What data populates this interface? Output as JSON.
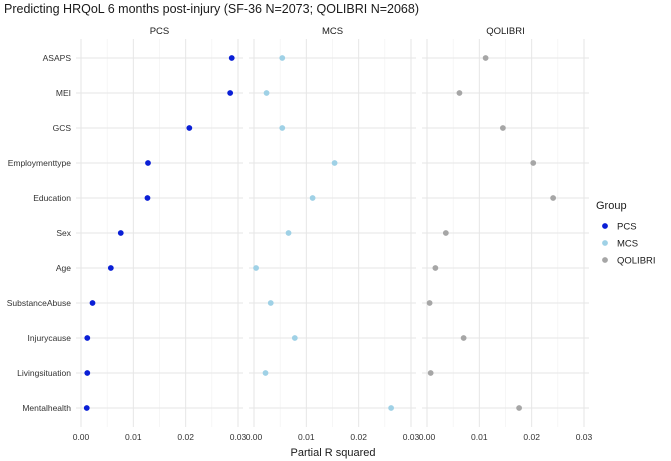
{
  "chart_data": {
    "type": "scatter",
    "title": "Predicting HRQoL 6 months post-injury (SF-36 N=2073; QOLIBRI N=2068)",
    "xlabel": "Partial R squared",
    "ylabel": "",
    "xlim": [
      0,
      0.03
    ],
    "x_ticks": [
      "0.00",
      "0.01",
      "0.02",
      "0.03"
    ],
    "categories": [
      "ASAPS",
      "MEI",
      "GCS",
      "Employmenttype",
      "Education",
      "Sex",
      "Age",
      "SubstanceAbuse",
      "Injurycause",
      "Livingsituation",
      "Mentalhealth"
    ],
    "legend": {
      "title": "Group",
      "position": "right"
    },
    "grid": true,
    "series": [
      {
        "name": "PCS",
        "color": "#0a1fd6",
        "values": [
          0.0288,
          0.0285,
          0.0207,
          0.0128,
          0.0127,
          0.0076,
          0.0057,
          0.0022,
          0.0012,
          0.0012,
          0.0011
        ]
      },
      {
        "name": "MCS",
        "color": "#9fd1e6",
        "values": [
          0.0054,
          0.0024,
          0.0054,
          0.0154,
          0.0112,
          0.0066,
          0.0004,
          0.0032,
          0.0078,
          0.0022,
          0.0262
        ]
      },
      {
        "name": "QOLIBRI",
        "color": "#a6a6a6",
        "values": [
          0.0112,
          0.0062,
          0.0145,
          0.0203,
          0.0241,
          0.0036,
          0.0016,
          0.0005,
          0.007,
          0.0007,
          0.0176
        ]
      }
    ]
  }
}
